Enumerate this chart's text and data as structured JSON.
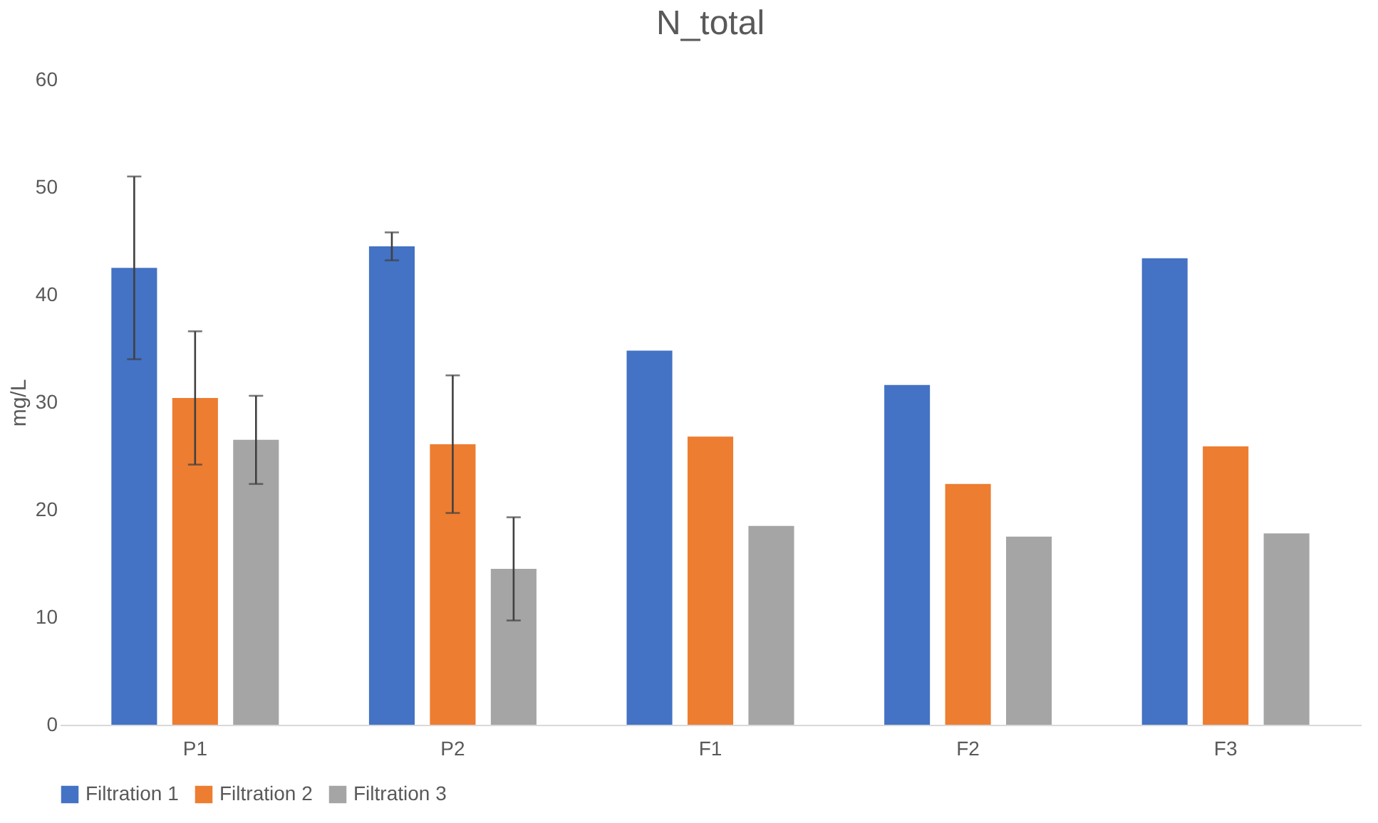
{
  "chart_data": {
    "type": "bar",
    "title": "N_total",
    "ylabel": "mg/L",
    "categories": [
      "P1",
      "P2",
      "F1",
      "F2",
      "F3"
    ],
    "series": [
      {
        "name": "Filtration 1",
        "color": "#4472c4",
        "values": [
          42.5,
          44.5,
          34.8,
          31.6,
          43.4
        ],
        "errors": [
          8.5,
          1.3,
          null,
          null,
          null
        ]
      },
      {
        "name": "Filtration 2",
        "color": "#ed7d31",
        "values": [
          30.4,
          26.1,
          26.8,
          22.4,
          25.9
        ],
        "errors": [
          6.2,
          6.4,
          null,
          null,
          null
        ]
      },
      {
        "name": "Filtration 3",
        "color": "#a5a5a5",
        "values": [
          26.5,
          14.5,
          18.5,
          17.5,
          17.8
        ],
        "errors": [
          4.1,
          4.8,
          null,
          null,
          null
        ]
      }
    ],
    "ylim": [
      0,
      60
    ],
    "yticks": [
      0,
      10,
      20,
      30,
      40,
      50,
      60
    ],
    "grid": false,
    "legend": "bottom"
  }
}
